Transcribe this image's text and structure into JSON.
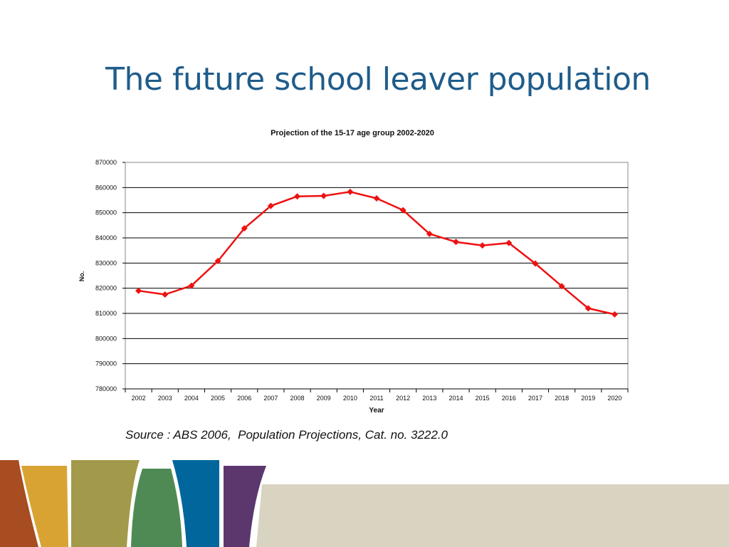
{
  "slide": {
    "title": "The future school leaver population",
    "source": "Source : ABS 2006,  Population Projections, Cat. no. 3222.0"
  },
  "chart_data": {
    "type": "line",
    "title": "Projection of the 15-17 age group 2002-2020",
    "xlabel": "Year",
    "ylabel": "No.",
    "ylim": [
      780000,
      870000
    ],
    "yticks": [
      780000,
      790000,
      800000,
      810000,
      820000,
      830000,
      840000,
      850000,
      860000,
      870000
    ],
    "grid": true,
    "categories": [
      "2002",
      "2003",
      "2004",
      "2005",
      "2006",
      "2007",
      "2008",
      "2009",
      "2010",
      "2011",
      "2012",
      "2013",
      "2014",
      "2015",
      "2016",
      "2017",
      "2018",
      "2019",
      "2020"
    ],
    "series": [
      {
        "values": [
          819000,
          817500,
          821000,
          830800,
          843800,
          852700,
          856500,
          856700,
          858300,
          855700,
          851000,
          841600,
          838400,
          837000,
          838000,
          829800,
          820800,
          812000,
          809600
        ],
        "color": "#ee1111"
      }
    ]
  },
  "colors": {
    "title": "#1f5c8a",
    "band": "#d9d3c1",
    "stripes": [
      "#a84c22",
      "#d9a334",
      "#a29a4a",
      "#4f8a55",
      "#00669b",
      "#5c376e"
    ]
  }
}
